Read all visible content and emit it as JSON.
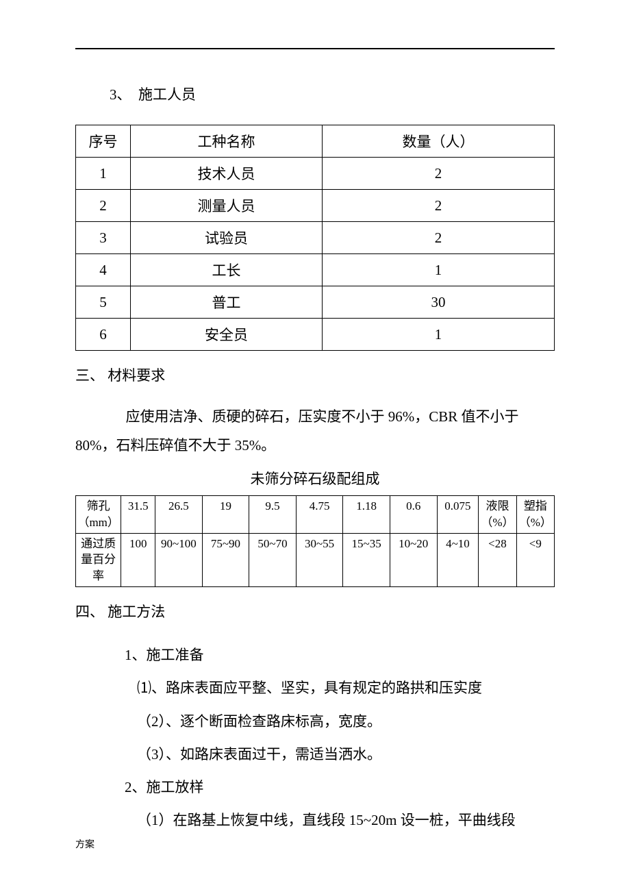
{
  "heading1": "3、　施工人员",
  "table1": {
    "headers": [
      "序号",
      "工种名称",
      "数量（人）"
    ],
    "rows": [
      [
        "1",
        "技术人员",
        "2"
      ],
      [
        "2",
        "测量人员",
        "2"
      ],
      [
        "3",
        "试验员",
        "2"
      ],
      [
        "4",
        "工长",
        "1"
      ],
      [
        "5",
        "普工",
        "30"
      ],
      [
        "6",
        "安全员",
        "1"
      ]
    ]
  },
  "section3": {
    "title": "三、 材料要求",
    "para": "应使用洁净、质硬的碎石，压实度不小于 96%，CBR 值不小于 80%，石料压碎值不大于 35%。"
  },
  "table2": {
    "caption": "未筛分碎石级配组成",
    "row1": [
      "筛孔（mm）",
      "31.5",
      "26.5",
      "19",
      "9.5",
      "4.75",
      "1.18",
      "0.6",
      "0.075",
      "液限（%）",
      "塑指（%）"
    ],
    "row2": [
      "通过质量百分率",
      "100",
      "90~100",
      "75~90",
      "50~70",
      "30~55",
      "15~35",
      "10~20",
      "4~10",
      "<28",
      "<9"
    ]
  },
  "section4": {
    "title": "四、 施工方法",
    "items": [
      "1、施工准备",
      "⑴、路床表面应平整、坚实，具有规定的路拱和压实度",
      "（2）、逐个断面检查路床标高，宽度。",
      "（3）、如路床表面过干，需适当洒水。",
      "2、施工放样",
      "（1）在路基上恢复中线，直线段 15~20m 设一桩，平曲线段"
    ]
  },
  "footer": "方案"
}
